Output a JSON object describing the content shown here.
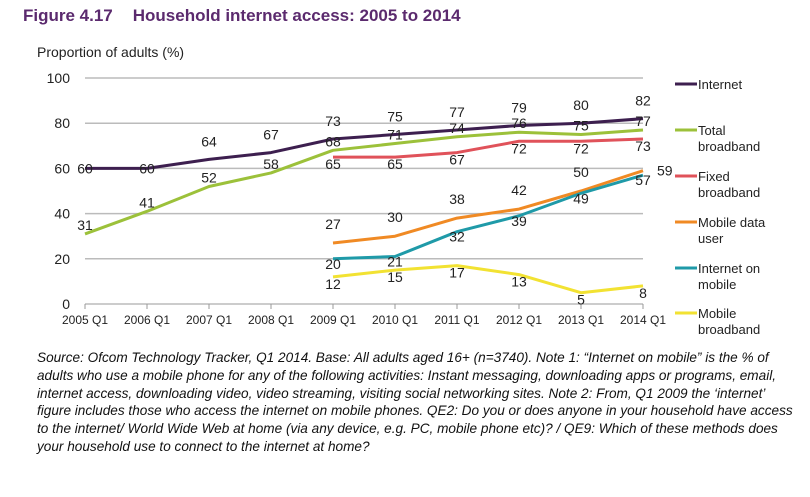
{
  "figure": {
    "number": "Figure 4.17",
    "title": "Household internet access: 2005 to 2014"
  },
  "source": "Source: Ofcom Technology Tracker, Q1 2014. Base: All adults aged 16+ (n=3740). Note 1: “Internet on mobile” is the % of adults who use a mobile phone for any of the following activities: Instant messaging, downloading apps or programs, email, internet access, downloading video, video streaming, visiting social networking sites. Note 2: From, Q1 2009 the ‘internet’ figure includes those who access the internet on mobile phones. QE2: Do you or does anyone in your household have access to the internet/ World Wide Web at home (via any device, e.g. PC, mobile phone etc)? / QE9: Which of these methods does your household use to connect to the internet at home?",
  "chart_data": {
    "type": "line",
    "title": "Household internet access: 2005 to 2014",
    "ylabel": "Proportion of adults (%)",
    "xlabel": "",
    "ylim": [
      0,
      100
    ],
    "yticks": [
      0,
      20,
      40,
      60,
      80,
      100
    ],
    "grid": true,
    "legend": "right",
    "categories": [
      "2005 Q1",
      "2006 Q1",
      "2007 Q1",
      "2008 Q1",
      "2009 Q1",
      "2010 Q1",
      "2011 Q1",
      "2012 Q1",
      "2013 Q1",
      "2014 Q1"
    ],
    "series": [
      {
        "name": "Internet",
        "color": "#3d1f4f",
        "values": [
          60,
          60,
          64,
          67,
          73,
          75,
          77,
          79,
          80,
          82
        ]
      },
      {
        "name": "Total broadband",
        "color": "#9cc13a",
        "values": [
          31,
          41,
          52,
          58,
          68,
          71,
          74,
          76,
          75,
          77
        ]
      },
      {
        "name": "Fixed broadband",
        "color": "#e0525a",
        "values": [
          null,
          null,
          null,
          null,
          65,
          65,
          67,
          72,
          72,
          73
        ]
      },
      {
        "name": "Mobile data user",
        "color": "#f08a24",
        "values": [
          null,
          null,
          null,
          null,
          27,
          30,
          38,
          42,
          50,
          59
        ]
      },
      {
        "name": "Internet on mobile",
        "color": "#1f9aa8",
        "values": [
          null,
          null,
          null,
          null,
          20,
          21,
          32,
          39,
          49,
          57
        ]
      },
      {
        "name": "Mobile broadband",
        "color": "#f2e232",
        "values": [
          null,
          null,
          null,
          null,
          12,
          15,
          17,
          13,
          5,
          8
        ]
      }
    ]
  }
}
